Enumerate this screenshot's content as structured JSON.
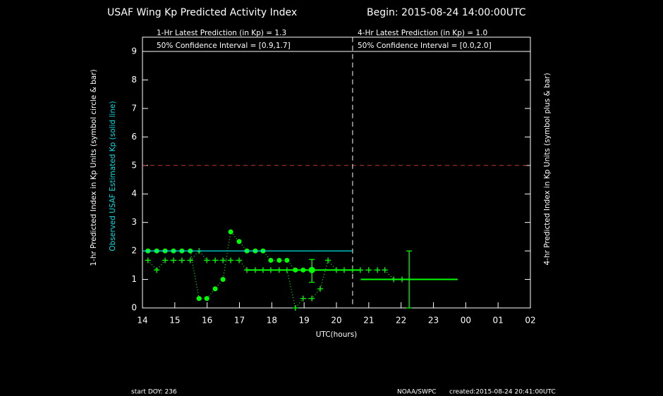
{
  "chart_data": {
    "type": "line",
    "title": "USAF Wing Kp Predicted Activity Index",
    "subtitle": "Begin: 2015-08-24 14:00:00UTC",
    "annotations": {
      "one_hr_prediction": "1-Hr Latest Prediction (in Kp) = 1.3",
      "one_hr_interval": "50% Confidence Interval  =  [0.9,1.7]",
      "four_hr_prediction": "4-Hr Latest Prediction (in Kp) = 1.0",
      "four_hr_interval": "50% Confidence Interval  =  [0.0,2.0]",
      "start_doy": "start DOY:  236",
      "source": "NOAA/SWPC",
      "created": "created:2015-08-24 20:41:00UTC"
    },
    "y_label": "1-hr Predicted Index in Kp Units (symbol circle & bar)",
    "y_label_observed": "Observed USAF Estimated Kp (solid line)",
    "y2_label": "4-hr Predicted Index in Kp Units (symbol plus & bar)",
    "x_label": "UTC(hours)",
    "xlim": [
      14,
      26
    ],
    "xticks": [
      14,
      15,
      16,
      17,
      18,
      19,
      20,
      21,
      22,
      23,
      {
        "value": 24,
        "label": "00"
      },
      {
        "value": 25,
        "label": "01"
      },
      {
        "value": 26,
        "label": "02"
      }
    ],
    "ylim": [
      0,
      9.5
    ],
    "yticks": [
      0,
      1,
      2,
      3,
      4,
      5,
      6,
      7,
      8,
      9
    ],
    "series": [
      {
        "marker": "circle",
        "color": "#00ff00",
        "line_style": "dotted",
        "x": [
          14.17,
          14.44,
          14.7,
          14.96,
          15.22,
          15.48,
          15.75,
          15.99,
          16.25,
          16.49,
          16.73,
          16.99,
          17.23,
          17.49,
          17.73,
          17.97,
          18.23,
          18.47,
          18.73,
          18.97,
          19.24
        ],
        "values": [
          2,
          2,
          2,
          2,
          2,
          2,
          0.33,
          0.33,
          0.67,
          1,
          2.67,
          2.33,
          2,
          2,
          2,
          1.67,
          1.67,
          1.67,
          1.33,
          1.33,
          1.33
        ]
      },
      {
        "marker": "plus",
        "color": "#00ff00",
        "line_style": "dotted",
        "x": [
          14.17,
          14.44,
          14.7,
          14.96,
          15.22,
          15.48,
          15.75,
          15.99,
          16.25,
          16.49,
          16.73,
          16.99,
          17.23,
          17.49,
          17.73,
          17.97,
          18.23,
          18.47,
          18.73,
          18.97,
          19.24,
          19.5,
          19.74,
          20.0,
          20.24,
          20.5,
          20.74,
          21.0,
          21.27,
          21.5,
          21.77,
          22.03
        ],
        "values": [
          1.67,
          1.33,
          1.67,
          1.67,
          1.67,
          1.67,
          2,
          1.67,
          1.67,
          1.67,
          1.67,
          1.67,
          1.33,
          1.33,
          1.33,
          1.33,
          1.33,
          1.33,
          0,
          0.33,
          0.33,
          0.67,
          1.67,
          1.33,
          1.33,
          1.33,
          1.33,
          1.33,
          1.33,
          1.33,
          1,
          1
        ]
      },
      {
        "marker": "none",
        "color": "#00e0e0",
        "line_style": "solid",
        "x": [
          14,
          20.5
        ],
        "values": [
          2,
          2
        ]
      }
    ],
    "error_bars": [
      {
        "x": 19.24,
        "value": 1.33,
        "low": 0.9,
        "high": 1.7,
        "x_range": [
          17.2,
          20.75
        ],
        "color": "#00ff00"
      },
      {
        "x": 22.25,
        "value": 1.0,
        "low": 0,
        "high": 2.0,
        "x_range": [
          20.75,
          23.75
        ],
        "color": "#00ff00"
      }
    ],
    "threshold": {
      "value": 5,
      "color": "#c83232"
    },
    "now_line": {
      "x": 20.5,
      "color": "#ffffff"
    },
    "header_line": 9
  }
}
